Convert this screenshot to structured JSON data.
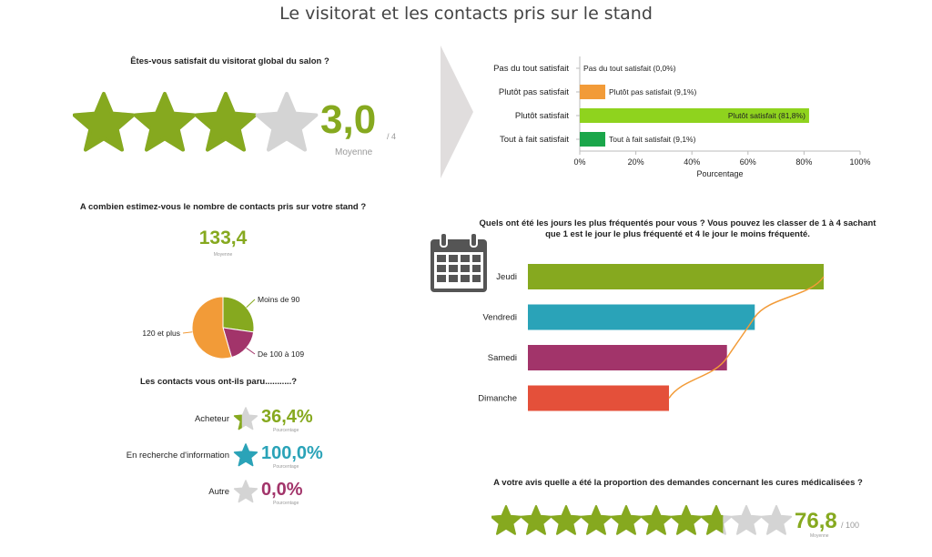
{
  "page": {
    "title": "Le visitorat et les contacts pris sur le stand"
  },
  "colors": {
    "green": "#86a91f",
    "grey": "#d4d4d4",
    "orange": "#f29b38",
    "bright_green": "#8fd31e",
    "dark_green": "#1aa64a",
    "teal": "#2aa3b8",
    "purple": "#a2346a",
    "red": "#e4503a"
  },
  "q1": {
    "question": "Êtes-vous satisfait du visitorat global du salon ?",
    "score": "3,0",
    "max": "/ 4",
    "caption": "Moyenne",
    "stars_total": 4,
    "stars_value": 3.0
  },
  "q2": {
    "question": "A combien estimez-vous le nombre de contacts pris sur votre stand ?",
    "value": "133,4",
    "caption": "Moyenne"
  },
  "q3": {
    "question": "Les contacts vous ont-ils paru...........?",
    "caption": "Pourcentage",
    "items": [
      {
        "label": "Acheteur",
        "value": "36,4%",
        "fraction": 0.364,
        "color": "#86a91f"
      },
      {
        "label": "En recherche d'information",
        "value": "100,0%",
        "fraction": 1.0,
        "color": "#2aa3b8"
      },
      {
        "label": "Autre",
        "value": "0,0%",
        "fraction": 0.0,
        "color": "#a2346a"
      }
    ]
  },
  "q4": {
    "question": "A votre avis quelle a été la proportion des demandes concernant les cures médicalisées ?",
    "score": "76,8",
    "max": "/ 100",
    "caption": "Moyenne",
    "stars_total": 10,
    "stars_value": 7.68
  },
  "q5": {
    "question_line1": "Quels ont été les jours les plus fréquentés pour vous ? Vous pouvez les classer de 1 à 4 sachant",
    "question_line2": "que 1 est le jour le plus fréquenté et 4 le jour le moins fréquenté."
  },
  "chart_data": [
    {
      "type": "bar",
      "orientation": "horizontal",
      "categories": [
        "Pas du tout satisfait",
        "Plutôt pas satisfait",
        "Plutôt satisfait",
        "Tout à fait satisfait"
      ],
      "values": [
        0.0,
        9.1,
        81.8,
        9.1
      ],
      "data_labels": [
        "Pas du tout satisfait (0,0%)",
        "Plutôt pas satisfait (9,1%)",
        "Plutôt satisfait (81,8%)",
        "Tout à fait satisfait (9,1%)"
      ],
      "colors": [
        "#f29b38",
        "#f29b38",
        "#8fd31e",
        "#1aa64a"
      ],
      "xlabel": "Pourcentage",
      "xlim": [
        0,
        100
      ],
      "xticks": [
        "0%",
        "20%",
        "40%",
        "60%",
        "80%",
        "100%"
      ]
    },
    {
      "type": "pie",
      "labels": [
        "Moins de 90",
        "De 100 à 109",
        "120 et plus"
      ],
      "values": [
        27.3,
        18.2,
        54.5
      ],
      "colors": [
        "#86a91f",
        "#a2346a",
        "#f29b38"
      ]
    },
    {
      "type": "bar",
      "orientation": "horizontal",
      "categories": [
        "Jeudi",
        "Vendredi",
        "Samedi",
        "Dimanche"
      ],
      "values": [
        100,
        76.7,
        67.3,
        47.7
      ],
      "colors": [
        "#86a91f",
        "#2aa3b8",
        "#a2346a",
        "#e4503a"
      ],
      "trend_line_color": "#f29b38"
    }
  ]
}
